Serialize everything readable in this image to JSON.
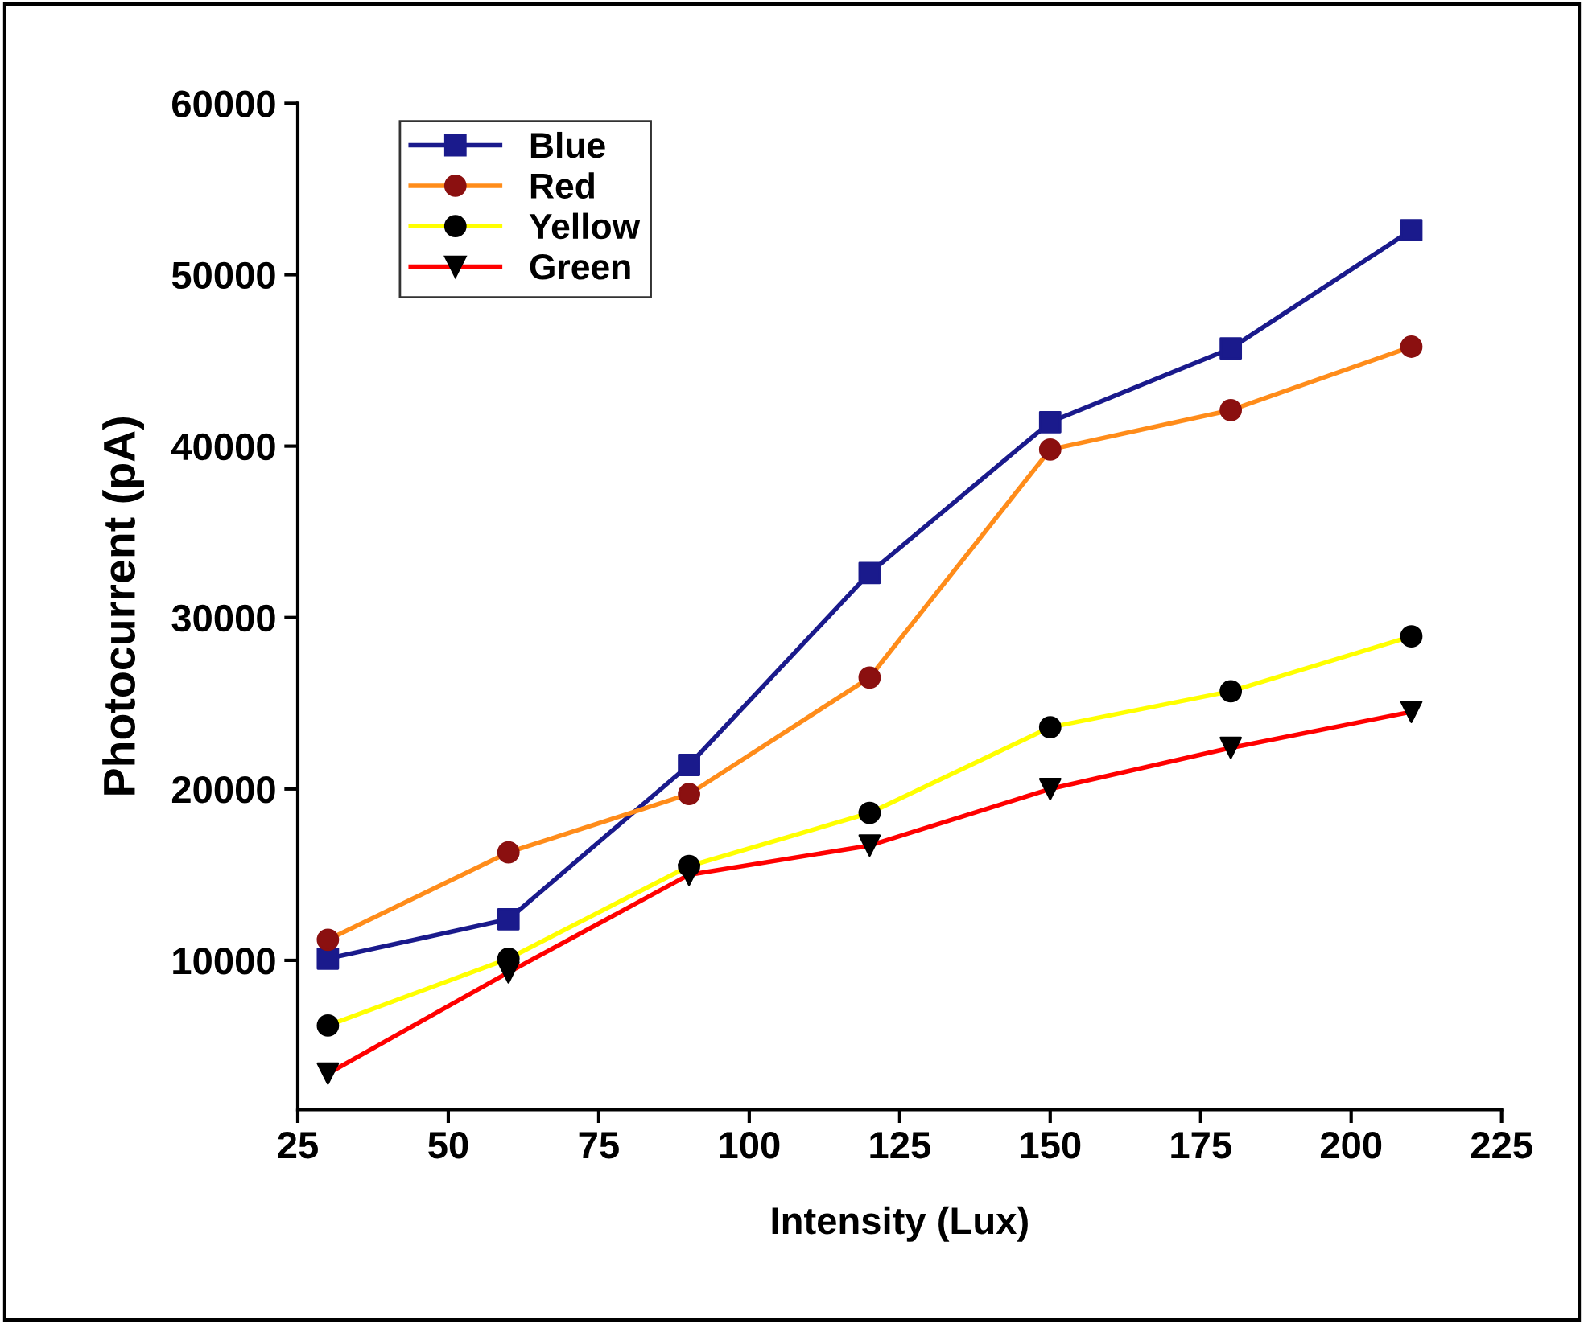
{
  "chart_data": {
    "type": "line",
    "xlabel": "Intensity (Lux)",
    "ylabel": "Photocurrent (pA)",
    "x": [
      30,
      60,
      90,
      120,
      150,
      180,
      210
    ],
    "series": [
      {
        "name": "Blue",
        "color": "#1a1a8c",
        "colors": [
          "#1a1a8c",
          "#1a1a8c",
          "#1a1a8c",
          "#1a1a8c",
          "#1a1a8c",
          "#1a1a8c",
          "#1a1a8c"
        ],
        "marker": "square",
        "values": [
          10100,
          12400,
          21400,
          32600,
          41400,
          45700,
          52600
        ]
      },
      {
        "name": "Red",
        "color": "#ff8c1a",
        "colors": [
          "#8b1010",
          "#8b1010",
          "#8b1010",
          "#8b1010",
          "#8b1010",
          "#8b1010",
          "#8b1010"
        ],
        "marker": "circle",
        "values": [
          11200,
          16300,
          19700,
          26500,
          39800,
          42100,
          45800
        ]
      },
      {
        "name": "Yellow",
        "color": "#ffff00",
        "colors": [
          "#000000",
          "#000000",
          "#000000",
          "#000000",
          "#000000",
          "#000000",
          "#000000"
        ],
        "marker": "circle",
        "values": [
          6200,
          10100,
          15500,
          18600,
          23600,
          25700,
          28900
        ]
      },
      {
        "name": "Green",
        "color": "#ff0000",
        "colors": [
          "#000000",
          "#000000",
          "#000000",
          "#000000",
          "#000000",
          "#000000",
          "#000000"
        ],
        "marker": "triangle",
        "values": [
          3400,
          9300,
          15000,
          16700,
          20000,
          22400,
          24500
        ]
      }
    ],
    "xlim": [
      25,
      225
    ],
    "xticks": [
      25,
      50,
      75,
      100,
      125,
      150,
      175,
      200,
      225
    ],
    "ylim": [
      1300,
      60000
    ],
    "yticks": [
      10000,
      20000,
      30000,
      40000,
      50000,
      60000
    ],
    "grid": false,
    "legend": "top left",
    "line_style": "solid"
  }
}
